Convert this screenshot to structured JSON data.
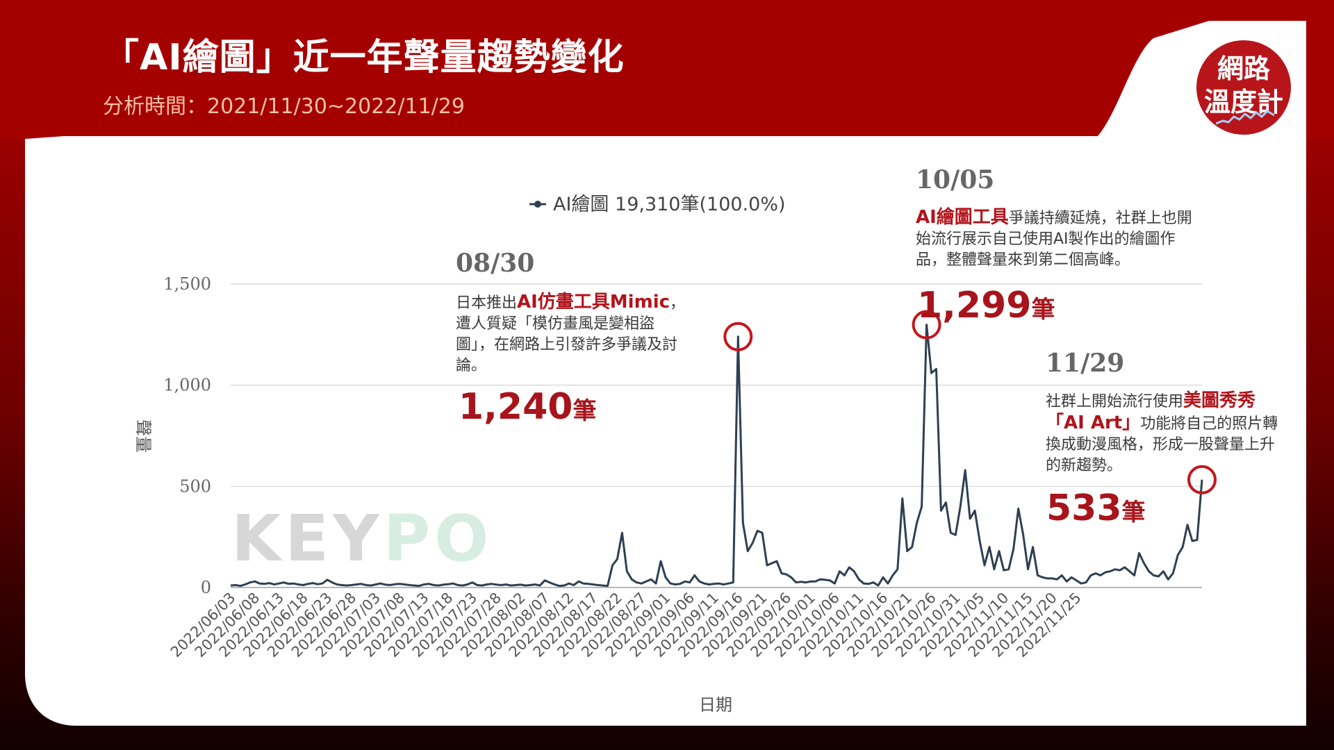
{
  "header": {
    "title": "「AI繪圖」近一年聲量趨勢變化",
    "period": "分析時間：2021/11/30~2022/11/29"
  },
  "logo": {
    "line1": "網路",
    "line2": "溫度計"
  },
  "watermark": {
    "part1": "KEY",
    "part2": "PO"
  },
  "colors": {
    "brand_red": "#a50000",
    "highlight": "#b3131b",
    "line": "#2e3f52",
    "marker": "#c4161c"
  },
  "annotations": [
    {
      "date": "08/30",
      "before": "日本推出",
      "highlight": "AI仿畫工具Mimic",
      "after": "，遭人質疑「模仿畫風是變相盜圖」，在網路上引發許多爭議及討論。",
      "count": "1,240",
      "unit": "筆"
    },
    {
      "date": "10/05",
      "before": "",
      "highlight": "AI繪圖工具",
      "after": "爭議持續延燒，社群上也開始流行展示自己使用AI製作出的繪圖作品，整體聲量來到第二個高峰。",
      "count": "1,299",
      "unit": "筆"
    },
    {
      "date": "11/29",
      "before": "社群上開始流行使用",
      "highlight": "美圖秀秀「AI Art」",
      "after": "功能將自己的照片轉換成動漫風格，形成一股聲量上升的新趨勢。",
      "count": "533",
      "unit": "筆"
    }
  ],
  "chart_data": {
    "type": "line",
    "legend": "AI繪圖 19,310筆(100.0%)",
    "xlabel": "日期",
    "ylabel": "聲量",
    "ylim": [
      0,
      1500
    ],
    "yticks": [
      "0",
      "500",
      "1,000",
      "1,500"
    ],
    "yvalues": [
      0,
      500,
      1000,
      1500
    ],
    "grid": true,
    "legend_position": "top-center",
    "x_start": "2022-06-03",
    "x_end": "2022-11-29",
    "x_tick_labels": [
      "2022/06/03",
      "2022/06/08",
      "2022/06/13",
      "2022/06/18",
      "2022/06/23",
      "2022/06/28",
      "2022/07/03",
      "2022/07/08",
      "2022/07/13",
      "2022/07/18",
      "2022/07/23",
      "2022/07/28",
      "2022/08/02",
      "2022/08/07",
      "2022/08/12",
      "2022/08/17",
      "2022/08/22",
      "2022/08/27",
      "2022/09/01",
      "2022/09/06",
      "2022/09/11",
      "2022/09/16",
      "2022/09/21",
      "2022/09/26",
      "2022/10/01",
      "2022/10/06",
      "2022/10/11",
      "2022/10/16",
      "2022/10/21",
      "2022/10/26",
      "2022/10/31",
      "2022/11/05",
      "2022/11/10",
      "2022/11/15",
      "2022/11/20",
      "2022/11/25"
    ],
    "series": [
      {
        "name": "AI繪圖",
        "values": [
          10,
          12,
          8,
          15,
          25,
          30,
          20,
          18,
          22,
          15,
          20,
          25,
          18,
          20,
          15,
          12,
          18,
          22,
          16,
          20,
          38,
          25,
          15,
          12,
          10,
          12,
          15,
          18,
          12,
          10,
          15,
          20,
          14,
          12,
          16,
          18,
          15,
          12,
          10,
          8,
          15,
          18,
          12,
          10,
          14,
          16,
          20,
          12,
          10,
          15,
          25,
          12,
          10,
          15,
          18,
          14,
          12,
          15,
          10,
          12,
          14,
          10,
          12,
          15,
          10,
          35,
          25,
          15,
          8,
          10,
          20,
          12,
          30,
          20,
          18,
          15,
          12,
          10,
          8,
          110,
          140,
          270,
          80,
          40,
          25,
          20,
          30,
          40,
          20,
          130,
          50,
          20,
          15,
          18,
          30,
          25,
          60,
          30,
          20,
          15,
          18,
          20,
          15,
          20,
          25,
          1240,
          320,
          180,
          220,
          280,
          270,
          110,
          120,
          130,
          70,
          65,
          50,
          25,
          28,
          25,
          30,
          30,
          40,
          38,
          35,
          20,
          80,
          60,
          100,
          80,
          40,
          20,
          18,
          25,
          10,
          50,
          20,
          60,
          90,
          440,
          180,
          200,
          320,
          400,
          1299,
          1060,
          1080,
          380,
          420,
          270,
          260,
          400,
          580,
          340,
          380,
          230,
          110,
          200,
          90,
          180,
          85,
          90,
          190,
          390,
          260,
          90,
          200,
          60,
          50,
          45,
          45,
          40,
          60,
          30,
          50,
          35,
          20,
          25,
          60,
          70,
          60,
          75,
          80,
          90,
          85,
          100,
          80,
          60,
          170,
          120,
          80,
          60,
          55,
          80,
          40,
          70,
          160,
          200,
          310,
          230,
          235,
          533
        ]
      }
    ]
  }
}
